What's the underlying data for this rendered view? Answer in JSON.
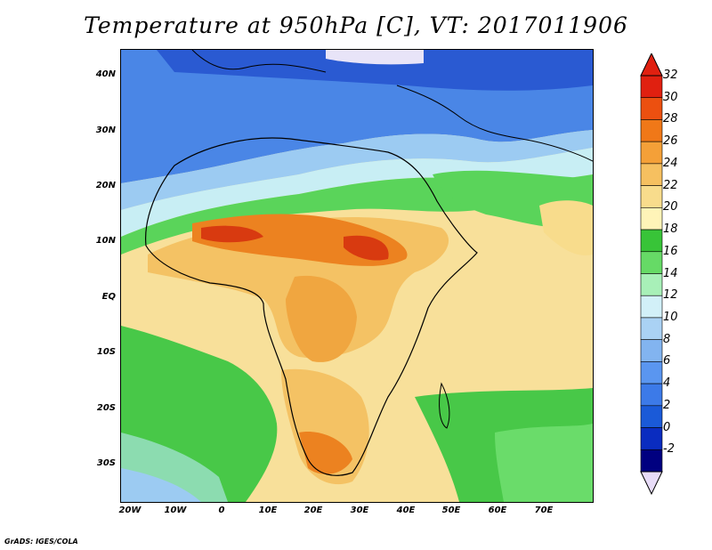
{
  "title": "Temperature at 950hPa [C], VT: 2017011906",
  "credit": "GrADS: IGES/COLA",
  "latitude_labels": [
    "40N",
    "30N",
    "20N",
    "10N",
    "EQ",
    "10S",
    "20S",
    "30S"
  ],
  "longitude_labels": [
    "20W",
    "10W",
    "0",
    "10E",
    "20E",
    "30E",
    "40E",
    "50E",
    "60E",
    "70E"
  ],
  "colorbar": {
    "labels": [
      "32",
      "30",
      "28",
      "26",
      "24",
      "22",
      "20",
      "18",
      "16",
      "14",
      "12",
      "10",
      "8",
      "6",
      "4",
      "2",
      "0",
      "-2"
    ],
    "colors": [
      "#a0f0f0",
      "#000080",
      "#0a2cc0",
      "#1a5ad8",
      "#3c7ae8",
      "#5a96f0",
      "#82b4f0",
      "#aad2f4",
      "#d2ecf4",
      "#9cecb0",
      "#66da66",
      "#38c438",
      "#fff2b0",
      "#f8dc8c",
      "#f4c264",
      "#f0a640",
      "#ec8220",
      "#e05a10",
      "#d02a08",
      "#e8dcf8"
    ],
    "swatches": [
      "#2a08c0",
      "#0a2cc0",
      "#1a5ad8",
      "#3c7ae8",
      "#5a96f0",
      "#82b4f0",
      "#aad2f4",
      "#d2f0f8",
      "#a8f0b8",
      "#66da66",
      "#38c438",
      "#fff4b8",
      "#f8dc8c",
      "#f4c264",
      "#f0a640",
      "#ec8220",
      "#e05a10"
    ]
  }
}
